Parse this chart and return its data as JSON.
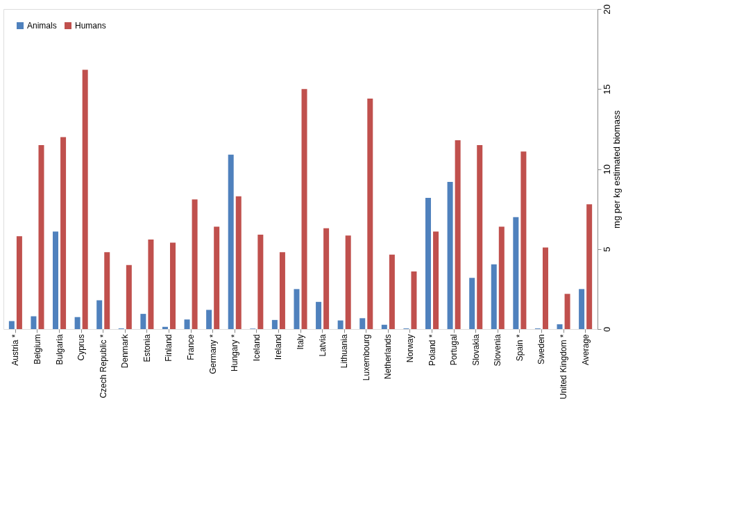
{
  "chart_data": {
    "type": "bar",
    "ylabel": "mg per kg estimated biomass",
    "categories": [
      "Austria *",
      "Belgium",
      "Bulgaria",
      "Cyprus",
      "Czech Republic *",
      "Denmark",
      "Estonia",
      "Finland",
      "France",
      "Germany *",
      "Hungary *",
      "Iceland",
      "Ireland",
      "Italy",
      "Latvia",
      "Lithuania",
      "Luxembourg",
      "Netherlands",
      "Norway",
      "Poland *",
      "Portugal",
      "Slovakia",
      "Slovenia",
      "Spain *",
      "Sweden",
      "United Kingdom *",
      "Average"
    ],
    "series": [
      {
        "name": "Animals",
        "color": "#4f81bd",
        "values": [
          0.5,
          0.8,
          6.1,
          0.75,
          1.8,
          0.04,
          0.95,
          0.14,
          0.6,
          1.2,
          10.9,
          0.03,
          0.57,
          2.5,
          1.7,
          0.54,
          0.68,
          0.27,
          0.04,
          8.2,
          9.2,
          3.2,
          4.05,
          7.0,
          0.04,
          0.3,
          2.5
        ]
      },
      {
        "name": "Humans",
        "color": "#c0504d",
        "values": [
          5.8,
          11.5,
          12.0,
          16.2,
          4.8,
          4.0,
          5.6,
          5.4,
          8.1,
          6.4,
          8.3,
          5.9,
          4.8,
          15.0,
          6.3,
          5.85,
          14.4,
          4.65,
          3.6,
          6.1,
          11.8,
          11.5,
          6.4,
          11.1,
          5.1,
          2.2,
          7.8
        ]
      }
    ],
    "ylim": [
      0,
      20
    ],
    "yticks": [
      0,
      5,
      10,
      15,
      20
    ],
    "grid": false,
    "legend": "top left"
  }
}
